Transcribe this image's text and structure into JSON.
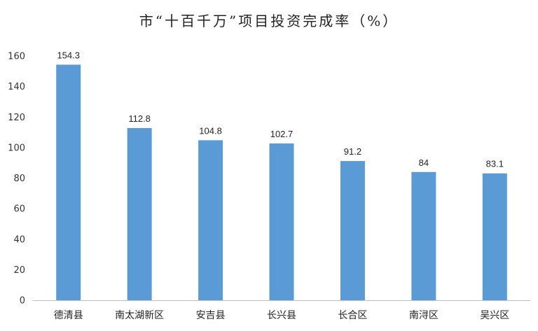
{
  "chart_data": {
    "type": "bar",
    "title": "市“十百千万”项目投资完成率（%）",
    "categories": [
      "德清县",
      "南太湖新区",
      "安吉县",
      "长兴县",
      "长合区",
      "南浔区",
      "吴兴区"
    ],
    "values": [
      154.3,
      112.8,
      104.8,
      102.7,
      91.2,
      84,
      83.1
    ],
    "value_labels": [
      "154.3",
      "112.8",
      "104.8",
      "102.7",
      "91.2",
      "84",
      "83.1"
    ],
    "y_ticks": [
      0,
      20,
      40,
      60,
      80,
      100,
      120,
      140,
      160
    ],
    "ylim": [
      0,
      160
    ],
    "xlabel": "",
    "ylabel": "",
    "grid": false,
    "legend": "none",
    "bar_color": "#5B9BD5",
    "axis_color": "#BFBFBF"
  }
}
